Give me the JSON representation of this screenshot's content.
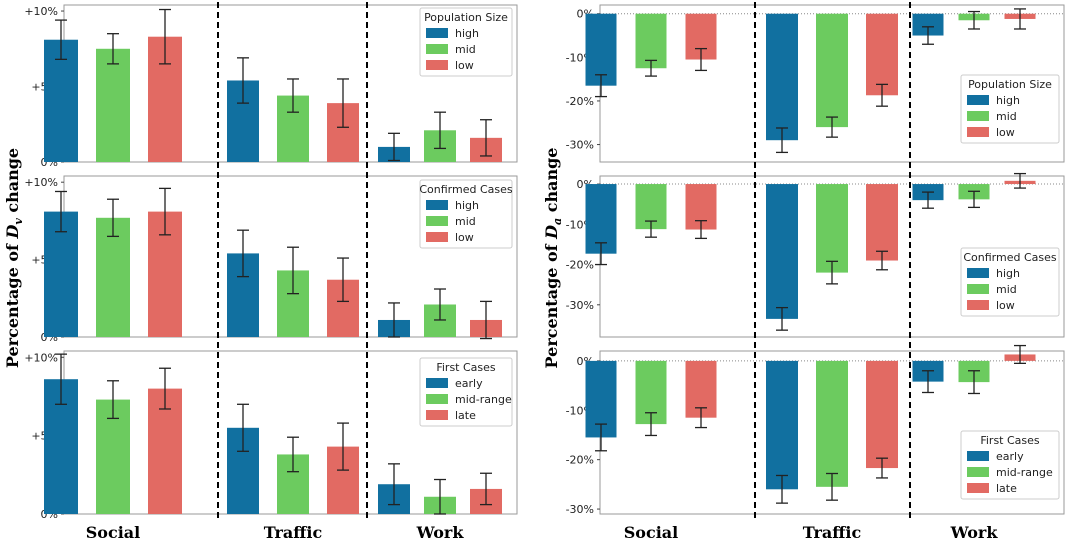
{
  "colors": {
    "c0": "#1170a0",
    "c1": "#6ccb5f",
    "c2": "#e26a63",
    "error": "#222222",
    "frame": "#9a9a9a"
  },
  "left_ylabel": {
    "prefix": "Percentage of ",
    "var": "D",
    "sub": "v",
    "suffix": " change"
  },
  "right_ylabel": {
    "prefix": "Percentage of ",
    "var": "D",
    "sub": "a",
    "suffix": " change"
  },
  "chart_data": [
    {
      "type": "bar",
      "side": "left",
      "row": 0,
      "categories": [
        "Social",
        "Traffic",
        "Work"
      ],
      "legend_title": "Population Size",
      "series": [
        {
          "name": "high",
          "values": [
            8.1,
            5.4,
            1.0
          ],
          "err": [
            1.3,
            1.5,
            0.9
          ]
        },
        {
          "name": "mid",
          "values": [
            7.5,
            4.4,
            2.1
          ],
          "err": [
            1.0,
            1.1,
            1.2
          ]
        },
        {
          "name": "low",
          "values": [
            8.3,
            3.9,
            1.6
          ],
          "err": [
            1.8,
            1.6,
            1.2
          ]
        }
      ],
      "ylim": [
        0,
        10.4
      ],
      "yticks": [
        0,
        5,
        10
      ],
      "ytick_labels": [
        "0%",
        "+5%",
        "+10%"
      ],
      "zero_line": false
    },
    {
      "type": "bar",
      "side": "left",
      "row": 1,
      "categories": [
        "Social",
        "Traffic",
        "Work"
      ],
      "legend_title": "Confirmed Cases",
      "series": [
        {
          "name": "high",
          "values": [
            8.1,
            5.4,
            1.1
          ],
          "err": [
            1.3,
            1.5,
            1.1
          ]
        },
        {
          "name": "mid",
          "values": [
            7.7,
            4.3,
            2.1
          ],
          "err": [
            1.2,
            1.5,
            1.0
          ]
        },
        {
          "name": "low",
          "values": [
            8.1,
            3.7,
            1.1
          ],
          "err": [
            1.5,
            1.4,
            1.2
          ]
        }
      ],
      "ylim": [
        0,
        10.4
      ],
      "yticks": [
        0,
        5,
        10
      ],
      "ytick_labels": [
        "0%",
        "+5%",
        "+10%"
      ],
      "zero_line": false
    },
    {
      "type": "bar",
      "side": "left",
      "row": 2,
      "categories": [
        "Social",
        "Traffic",
        "Work"
      ],
      "legend_title": "First Cases",
      "series": [
        {
          "name": "early",
          "values": [
            8.6,
            5.5,
            1.9
          ],
          "err": [
            1.6,
            1.5,
            1.3
          ]
        },
        {
          "name": "mid-range",
          "values": [
            7.3,
            3.8,
            1.1
          ],
          "err": [
            1.2,
            1.1,
            1.1
          ]
        },
        {
          "name": "late",
          "values": [
            8.0,
            4.3,
            1.6
          ],
          "err": [
            1.3,
            1.5,
            1.0
          ]
        }
      ],
      "ylim": [
        0,
        10.4
      ],
      "yticks": [
        0,
        5,
        10
      ],
      "ytick_labels": [
        "0%",
        "+5%",
        "+10%"
      ],
      "zero_line": false
    },
    {
      "type": "bar",
      "side": "right",
      "row": 0,
      "categories": [
        "Social",
        "Traffic",
        "Work"
      ],
      "legend_title": "Population Size",
      "series": [
        {
          "name": "high",
          "values": [
            -16.5,
            -29,
            -5.0
          ],
          "err": [
            2.5,
            2.8,
            2.0
          ]
        },
        {
          "name": "mid",
          "values": [
            -12.5,
            -26,
            -1.5
          ],
          "err": [
            1.8,
            2.3,
            2.0
          ]
        },
        {
          "name": "low",
          "values": [
            -10.5,
            -18.7,
            -1.2
          ],
          "err": [
            2.5,
            2.5,
            2.3
          ]
        }
      ],
      "ylim": [
        -34,
        2
      ],
      "yticks": [
        0,
        -10,
        -20,
        -30
      ],
      "ytick_labels": [
        "0%",
        "-10%",
        "-20%",
        "-30%"
      ],
      "zero_line": true
    },
    {
      "type": "bar",
      "side": "right",
      "row": 1,
      "categories": [
        "Social",
        "Traffic",
        "Work"
      ],
      "legend_title": "Confirmed Cases",
      "series": [
        {
          "name": "high",
          "values": [
            -17.3,
            -33.5,
            -4.0
          ],
          "err": [
            2.7,
            2.8,
            2.0
          ]
        },
        {
          "name": "mid",
          "values": [
            -11.2,
            -22.0,
            -3.8
          ],
          "err": [
            2.0,
            2.8,
            2.0
          ]
        },
        {
          "name": "low",
          "values": [
            -11.3,
            -19.0,
            0.8
          ],
          "err": [
            2.2,
            2.3,
            1.8
          ]
        }
      ],
      "ylim": [
        -38,
        2
      ],
      "yticks": [
        0,
        -10,
        -20,
        -30
      ],
      "ytick_labels": [
        "0%",
        "-10%",
        "-20%",
        "-30%"
      ],
      "zero_line": true
    },
    {
      "type": "bar",
      "side": "right",
      "row": 2,
      "categories": [
        "Social",
        "Traffic",
        "Work"
      ],
      "legend_title": "First Cases",
      "series": [
        {
          "name": "early",
          "values": [
            -15.5,
            -26.0,
            -4.2
          ],
          "err": [
            2.7,
            2.8,
            2.2
          ]
        },
        {
          "name": "mid-range",
          "values": [
            -12.8,
            -25.5,
            -4.3
          ],
          "err": [
            2.3,
            2.7,
            2.3
          ]
        },
        {
          "name": "late",
          "values": [
            -11.5,
            -21.7,
            1.3
          ],
          "err": [
            2.0,
            2.0,
            1.8
          ]
        }
      ],
      "ylim": [
        -31,
        2
      ],
      "yticks": [
        0,
        -10,
        -20,
        -30
      ],
      "ytick_labels": [
        "0%",
        "-10%",
        "-20%",
        "-30%"
      ],
      "zero_line": true
    }
  ]
}
